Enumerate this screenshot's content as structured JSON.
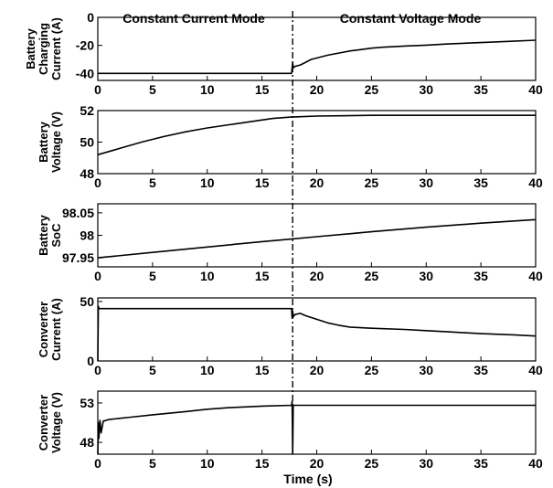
{
  "figure": {
    "mode_labels": [
      "Constant Current Mode",
      "Constant Voltage Mode"
    ],
    "xlabel": "Time (s)",
    "mode_switch_time": 17.8
  },
  "chart_data": [
    {
      "type": "line",
      "ylabel": [
        "Battery",
        "Charging",
        "Current (A)"
      ],
      "xlim": [
        0,
        40
      ],
      "ylim": [
        -45,
        0
      ],
      "yticks": [
        0,
        -20,
        -40
      ],
      "xticks": [
        0,
        5,
        10,
        15,
        20,
        25,
        30,
        35,
        40
      ],
      "x": [
        0,
        17.7,
        17.75,
        17.8,
        17.85,
        18,
        18.5,
        19,
        19.5,
        20,
        21,
        22,
        23,
        24,
        25,
        26,
        28,
        30,
        32,
        35,
        38,
        40
      ],
      "values": [
        -40,
        -40,
        -36,
        -32,
        -36,
        -35,
        -34,
        -32,
        -30,
        -29,
        -27,
        -25.5,
        -24,
        -23,
        -22,
        -21.3,
        -20.5,
        -19.8,
        -19,
        -18,
        -17,
        -16.3
      ]
    },
    {
      "type": "line",
      "ylabel": [
        "Battery",
        "Voltage (V)"
      ],
      "xlim": [
        0,
        40
      ],
      "ylim": [
        48,
        52
      ],
      "yticks": [
        52,
        50,
        48
      ],
      "xticks": [
        0,
        5,
        10,
        15,
        20,
        25,
        30,
        35,
        40
      ],
      "x": [
        0,
        2,
        4,
        6,
        8,
        10,
        12,
        14,
        16,
        17.8,
        18,
        20,
        25,
        30,
        35,
        40
      ],
      "values": [
        49.2,
        49.6,
        50.0,
        50.35,
        50.65,
        50.9,
        51.1,
        51.3,
        51.5,
        51.6,
        51.6,
        51.65,
        51.7,
        51.7,
        51.7,
        51.7
      ]
    },
    {
      "type": "line",
      "ylabel": [
        "Battery",
        "SoC"
      ],
      "xlim": [
        0,
        40
      ],
      "ylim": [
        97.93,
        98.07
      ],
      "yticks": [
        98.05,
        98,
        97.95
      ],
      "xticks": [
        0,
        5,
        10,
        15,
        20,
        25,
        30,
        35,
        40
      ],
      "x": [
        0,
        5,
        10,
        15,
        17.8,
        20,
        25,
        30,
        35,
        40
      ],
      "values": [
        97.95,
        97.962,
        97.974,
        97.986,
        97.992,
        97.997,
        98.008,
        98.018,
        98.027,
        98.035
      ]
    },
    {
      "type": "line",
      "ylabel": [
        "Converter",
        "Current (A)"
      ],
      "xlim": [
        0,
        40
      ],
      "ylim": [
        0,
        53
      ],
      "yticks": [
        50,
        0
      ],
      "xticks": [
        0,
        5,
        10,
        15,
        20,
        25,
        30,
        35,
        40
      ],
      "x": [
        0,
        0.05,
        0.1,
        0.3,
        5,
        10,
        17.7,
        17.75,
        17.8,
        17.85,
        18,
        18.5,
        19,
        20,
        21,
        22,
        23,
        25,
        28,
        30,
        32,
        35,
        38,
        40
      ],
      "values": [
        0,
        46,
        44,
        44,
        44,
        44,
        44,
        36,
        42,
        37,
        39,
        40,
        38,
        35,
        32,
        30,
        28.5,
        27.5,
        26.5,
        25.5,
        24.5,
        23,
        22,
        21
      ]
    },
    {
      "type": "line",
      "ylabel": [
        "Converter",
        "Voltage (V)"
      ],
      "xlim": [
        0,
        40
      ],
      "ylim": [
        46.5,
        54.5
      ],
      "yticks": [
        53,
        48
      ],
      "xticks": [
        0,
        5,
        10,
        15,
        20,
        25,
        30,
        35,
        40
      ],
      "x": [
        0,
        0.05,
        0.1,
        0.2,
        0.3,
        0.5,
        1,
        3,
        5,
        8,
        10,
        12,
        15,
        17.7,
        17.75,
        17.8,
        17.85,
        17.9,
        20,
        25,
        30,
        35,
        40
      ],
      "values": [
        46.5,
        50.5,
        48.5,
        50.8,
        49.2,
        50.7,
        50.9,
        51.2,
        51.5,
        51.9,
        52.2,
        52.4,
        52.6,
        52.7,
        53.2,
        46.5,
        52.7,
        52.7,
        52.7,
        52.7,
        52.7,
        52.7,
        52.7
      ]
    }
  ]
}
